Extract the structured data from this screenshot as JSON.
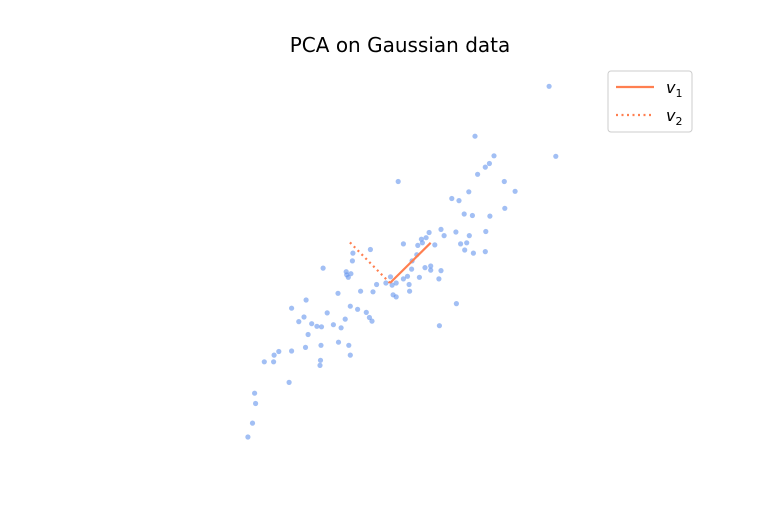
{
  "chart_data": {
    "type": "scatter",
    "title": "PCA on Gaussian data",
    "xlabel": "",
    "ylabel": "",
    "axes_visible": false,
    "grid": false,
    "aspect": "equal",
    "xlim": [
      -4.3,
      4.3
    ],
    "ylim": [
      -3.7,
      3.7
    ],
    "point_color": "#6495ed",
    "vector_color": "#ff7f50",
    "legend": {
      "placement": "top-right",
      "entries": [
        {
          "base": "v",
          "sub": "1",
          "style": "solid"
        },
        {
          "base": "v",
          "sub": "2",
          "style": "dotted"
        }
      ]
    },
    "mean": [
      0.0,
      0.0
    ],
    "vectors": [
      {
        "name": "v1",
        "dx": 0.79,
        "dy": 0.78,
        "style": "solid"
      },
      {
        "name": "v2",
        "dx": -0.78,
        "dy": 0.79,
        "style": "dotted"
      }
    ],
    "points": [
      [
        3.09,
        3.82
      ],
      [
        3.22,
        2.46
      ],
      [
        1.65,
        2.85
      ],
      [
        1.93,
        2.32
      ],
      [
        2.43,
        1.78
      ],
      [
        2.22,
        1.97
      ],
      [
        1.7,
        2.11
      ],
      [
        1.85,
        2.25
      ],
      [
        2.02,
        2.47
      ],
      [
        1.53,
        1.77
      ],
      [
        1.6,
        1.31
      ],
      [
        1.34,
        1.6
      ],
      [
        1.44,
        1.34
      ],
      [
        1.2,
        1.64
      ],
      [
        1.94,
        1.3
      ],
      [
        2.23,
        1.45
      ],
      [
        1.86,
        1.0
      ],
      [
        1.54,
        0.92
      ],
      [
        1.49,
        0.78
      ],
      [
        1.45,
        0.64
      ],
      [
        1.28,
        0.99
      ],
      [
        1.62,
        0.58
      ],
      [
        1.37,
        0.76
      ],
      [
        1.05,
        0.92
      ],
      [
        0.99,
        1.04
      ],
      [
        0.87,
        0.74
      ],
      [
        0.76,
        0.98
      ],
      [
        0.7,
        0.88
      ],
      [
        0.54,
        0.73
      ],
      [
        0.16,
        1.97
      ],
      [
        0.52,
        0.55
      ],
      [
        0.43,
        0.43
      ],
      [
        0.26,
        0.76
      ],
      [
        0.61,
        0.85
      ],
      [
        0.63,
        0.78
      ],
      [
        0.79,
        0.33
      ],
      [
        0.57,
        0.11
      ],
      [
        0.68,
        0.3
      ],
      [
        0.42,
        0.27
      ],
      [
        0.95,
        0.08
      ],
      [
        0.99,
        0.24
      ],
      [
        0.79,
        0.25
      ],
      [
        0.37,
        -0.03
      ],
      [
        0.34,
        0.13
      ],
      [
        0.26,
        0.08
      ],
      [
        0.12,
        0.0
      ],
      [
        0.01,
        0.12
      ],
      [
        0.04,
        -0.04
      ],
      [
        0.06,
        -0.23
      ],
      [
        0.12,
        -0.27
      ],
      [
        0.38,
        -0.16
      ],
      [
        1.29,
        -0.4
      ],
      [
        0.96,
        -0.83
      ],
      [
        -0.08,
        0.0
      ],
      [
        -0.26,
        -0.03
      ],
      [
        -0.33,
        -0.17
      ],
      [
        -0.57,
        -0.16
      ],
      [
        -0.63,
        -0.51
      ],
      [
        -0.46,
        -0.57
      ],
      [
        -0.35,
        -0.74
      ],
      [
        -0.4,
        -0.67
      ],
      [
        -0.38,
        0.65
      ],
      [
        -0.72,
        0.58
      ],
      [
        -0.73,
        0.43
      ],
      [
        -0.76,
        0.18
      ],
      [
        -0.81,
        0.11
      ],
      [
        -1.3,
        0.29
      ],
      [
        -0.84,
        0.16
      ],
      [
        -1.01,
        -0.2
      ],
      [
        -0.77,
        -0.45
      ],
      [
        -0.87,
        -0.7
      ],
      [
        -1.1,
        -0.81
      ],
      [
        -0.95,
        -0.87
      ],
      [
        -1.22,
        -0.58
      ],
      [
        -1.33,
        -0.85
      ],
      [
        -1.42,
        -0.84
      ],
      [
        -1.63,
        -0.33
      ],
      [
        -1.52,
        -0.79
      ],
      [
        -1.67,
        -0.66
      ],
      [
        -1.91,
        -0.49
      ],
      [
        -1.64,
        -1.25
      ],
      [
        -1.34,
        -1.21
      ],
      [
        -1.77,
        -0.75
      ],
      [
        -1.59,
        -1.0
      ],
      [
        -1.91,
        -1.32
      ],
      [
        -1.0,
        -1.15
      ],
      [
        -0.8,
        -1.21
      ],
      [
        -0.77,
        -1.4
      ],
      [
        -1.35,
        -1.5
      ],
      [
        -1.36,
        -1.6
      ],
      [
        -2.16,
        -1.33
      ],
      [
        -2.25,
        -1.4
      ],
      [
        -2.26,
        -1.53
      ],
      [
        -2.44,
        -1.53
      ],
      [
        -2.63,
        -2.14
      ],
      [
        -2.61,
        -2.34
      ],
      [
        -2.67,
        -2.72
      ],
      [
        -2.76,
        -2.99
      ],
      [
        -1.96,
        -1.93
      ],
      [
        1.85,
        0.61
      ],
      [
        -0.85,
        0.22
      ]
    ]
  }
}
